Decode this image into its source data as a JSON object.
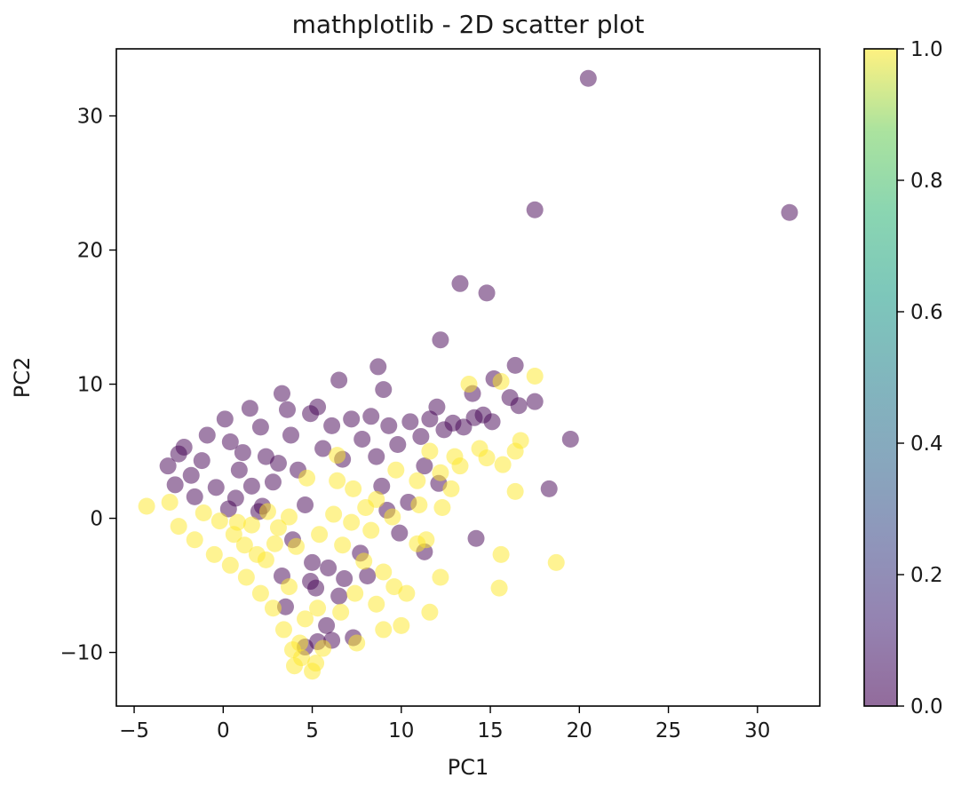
{
  "chart_data": {
    "type": "scatter",
    "title": "mathplotlib - 2D scatter plot",
    "xlabel": "PC1",
    "ylabel": "PC2",
    "xlim": [
      -6,
      33.5
    ],
    "ylim": [
      -14,
      35
    ],
    "xticks": [
      -5,
      0,
      5,
      10,
      15,
      20,
      25,
      30
    ],
    "yticks": [
      -10,
      0,
      10,
      20,
      30
    ],
    "colormap": "viridis",
    "alpha": 0.5,
    "colorbar": {
      "ticks": [
        0.0,
        0.2,
        0.4,
        0.6,
        0.8,
        1.0
      ],
      "tick_labels": [
        "0.0",
        "0.2",
        "0.4",
        "0.6",
        "0.8",
        "1.0"
      ],
      "range": [
        0.0,
        1.0
      ]
    },
    "colors": {
      "class_0": "#440154",
      "class_1": "#fde725"
    },
    "series": [
      {
        "class_value": 0,
        "color": "#440154",
        "points": [
          [
            20.5,
            32.8
          ],
          [
            31.8,
            22.8
          ],
          [
            17.5,
            23.0
          ],
          [
            13.3,
            17.5
          ],
          [
            14.8,
            16.8
          ],
          [
            12.2,
            13.3
          ],
          [
            8.7,
            11.3
          ],
          [
            16.4,
            11.4
          ],
          [
            15.2,
            10.4
          ],
          [
            6.5,
            10.3
          ],
          [
            3.3,
            9.3
          ],
          [
            9.0,
            9.6
          ],
          [
            14.0,
            9.3
          ],
          [
            16.1,
            9.0
          ],
          [
            17.5,
            8.7
          ],
          [
            16.6,
            8.4
          ],
          [
            12.0,
            8.3
          ],
          [
            19.5,
            5.9
          ],
          [
            18.3,
            2.2
          ],
          [
            14.2,
            -1.5
          ],
          [
            11.3,
            -2.5
          ],
          [
            8.1,
            -4.3
          ],
          [
            6.5,
            -5.8
          ],
          [
            5.2,
            -5.2
          ],
          [
            3.5,
            -6.6
          ],
          [
            5.8,
            -8.0
          ],
          [
            6.1,
            -9.1
          ],
          [
            5.3,
            -9.2
          ],
          [
            4.6,
            -9.6
          ],
          [
            7.3,
            -8.9
          ],
          [
            6.8,
            -4.5
          ],
          [
            5.9,
            -3.7
          ],
          [
            4.9,
            -4.7
          ],
          [
            5.0,
            -3.3
          ],
          [
            7.7,
            -2.6
          ],
          [
            9.9,
            -1.1
          ],
          [
            3.3,
            -4.3
          ],
          [
            3.9,
            -1.6
          ],
          [
            2.0,
            0.5
          ],
          [
            4.6,
            1.0
          ],
          [
            8.9,
            2.4
          ],
          [
            11.3,
            3.9
          ],
          [
            12.1,
            2.6
          ],
          [
            10.4,
            1.2
          ],
          [
            9.2,
            0.6
          ],
          [
            -3.1,
            3.9
          ],
          [
            -2.7,
            2.5
          ],
          [
            -2.2,
            5.3
          ],
          [
            -1.6,
            1.6
          ],
          [
            -0.9,
            6.2
          ],
          [
            -1.2,
            4.3
          ],
          [
            0.1,
            7.4
          ],
          [
            0.4,
            5.7
          ],
          [
            0.9,
            3.6
          ],
          [
            1.5,
            8.2
          ],
          [
            2.1,
            6.8
          ],
          [
            2.4,
            4.6
          ],
          [
            2.8,
            2.7
          ],
          [
            3.6,
            8.1
          ],
          [
            3.8,
            6.2
          ],
          [
            4.2,
            3.6
          ],
          [
            4.9,
            7.8
          ],
          [
            5.3,
            8.3
          ],
          [
            5.6,
            5.2
          ],
          [
            6.1,
            6.9
          ],
          [
            6.7,
            4.4
          ],
          [
            7.2,
            7.4
          ],
          [
            7.8,
            5.9
          ],
          [
            8.3,
            7.6
          ],
          [
            8.6,
            4.6
          ],
          [
            9.3,
            6.9
          ],
          [
            9.8,
            5.5
          ],
          [
            10.5,
            7.2
          ],
          [
            11.1,
            6.1
          ],
          [
            11.6,
            7.4
          ],
          [
            12.4,
            6.6
          ],
          [
            12.9,
            7.1
          ],
          [
            13.5,
            6.8
          ],
          [
            14.1,
            7.5
          ],
          [
            14.6,
            7.7
          ],
          [
            15.1,
            7.2
          ],
          [
            0.7,
            1.5
          ],
          [
            1.6,
            2.4
          ],
          [
            -0.4,
            2.3
          ],
          [
            1.1,
            4.9
          ],
          [
            3.1,
            4.1
          ],
          [
            2.2,
            0.9
          ],
          [
            -2.5,
            4.8
          ],
          [
            -1.8,
            3.2
          ],
          [
            0.3,
            0.7
          ]
        ]
      },
      {
        "class_value": 1,
        "color": "#fde725",
        "points": [
          [
            -4.3,
            0.9
          ],
          [
            -2.5,
            -0.6
          ],
          [
            -1.6,
            -1.6
          ],
          [
            -0.5,
            -2.7
          ],
          [
            0.4,
            -3.5
          ],
          [
            1.3,
            -4.4
          ],
          [
            2.1,
            -5.6
          ],
          [
            2.8,
            -6.7
          ],
          [
            3.4,
            -8.3
          ],
          [
            3.9,
            -9.8
          ],
          [
            4.4,
            -10.4
          ],
          [
            5.0,
            -11.4
          ],
          [
            5.2,
            -10.8
          ],
          [
            4.3,
            -9.3
          ],
          [
            7.5,
            -9.3
          ],
          [
            7.4,
            -5.6
          ],
          [
            8.6,
            -6.4
          ],
          [
            9.0,
            -8.3
          ],
          [
            10.0,
            -8.0
          ],
          [
            11.6,
            -7.0
          ],
          [
            10.3,
            -5.6
          ],
          [
            9.6,
            -5.1
          ],
          [
            12.2,
            -4.4
          ],
          [
            15.5,
            -5.2
          ],
          [
            15.6,
            -2.7
          ],
          [
            18.7,
            -3.3
          ],
          [
            11.4,
            -1.6
          ],
          [
            9.5,
            0.1
          ],
          [
            8.3,
            -0.9
          ],
          [
            7.2,
            -0.3
          ],
          [
            6.2,
            0.3
          ],
          [
            5.4,
            -1.2
          ],
          [
            4.1,
            -2.1
          ],
          [
            3.1,
            -0.7
          ],
          [
            2.5,
            0.5
          ],
          [
            1.6,
            -0.5
          ],
          [
            0.6,
            -1.2
          ],
          [
            -0.2,
            -0.2
          ],
          [
            16.4,
            2.0
          ],
          [
            15.7,
            4.0
          ],
          [
            16.4,
            5.0
          ],
          [
            16.7,
            5.8
          ],
          [
            14.4,
            5.2
          ],
          [
            13.3,
            3.9
          ],
          [
            12.2,
            3.4
          ],
          [
            10.9,
            2.8
          ],
          [
            9.7,
            3.6
          ],
          [
            8.6,
            1.4
          ],
          [
            7.3,
            2.2
          ],
          [
            6.4,
            2.8
          ],
          [
            13.8,
            10.0
          ],
          [
            15.6,
            10.2
          ],
          [
            17.5,
            10.6
          ],
          [
            13.0,
            4.6
          ],
          [
            11.6,
            5.0
          ],
          [
            4.7,
            3.0
          ],
          [
            6.4,
            4.7
          ],
          [
            5.3,
            -6.7
          ],
          [
            6.6,
            -7.0
          ],
          [
            3.7,
            -5.1
          ],
          [
            2.4,
            -3.1
          ],
          [
            1.2,
            -2.0
          ],
          [
            0.8,
            -0.3
          ],
          [
            9.0,
            -4.0
          ],
          [
            10.9,
            -1.9
          ],
          [
            12.3,
            0.8
          ],
          [
            8.0,
            0.8
          ],
          [
            3.7,
            0.1
          ],
          [
            2.9,
            -1.9
          ],
          [
            1.9,
            -2.7
          ],
          [
            -3.0,
            1.2
          ],
          [
            -1.1,
            0.4
          ],
          [
            4.6,
            -7.5
          ],
          [
            5.6,
            -9.7
          ],
          [
            4.0,
            -11.0
          ],
          [
            14.8,
            4.5
          ],
          [
            12.8,
            2.2
          ],
          [
            6.7,
            -2.0
          ],
          [
            7.9,
            -3.2
          ],
          [
            11.0,
            1.0
          ]
        ]
      }
    ]
  }
}
